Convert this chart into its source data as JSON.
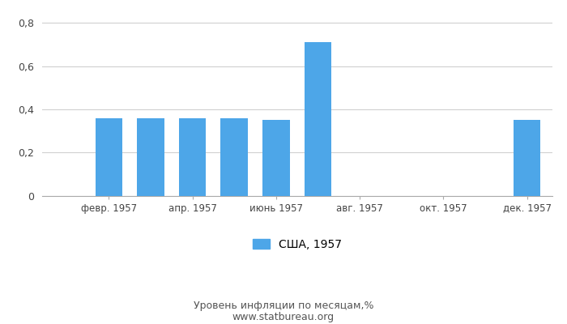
{
  "values": [
    0,
    0.36,
    0.36,
    0.36,
    0.36,
    0.35,
    0.71,
    0,
    0,
    0,
    0,
    0.35
  ],
  "bar_color": "#4da6e8",
  "xlabel_bottom": "Уровень инфляции по месяцам,%",
  "source": "www.statbureau.org",
  "legend_label": "США, 1957",
  "ylim": [
    0,
    0.85
  ],
  "yticks": [
    0,
    0.2,
    0.4,
    0.6,
    0.8
  ],
  "ytick_labels": [
    "0",
    "0,2",
    "0,4",
    "0,6",
    "0,8"
  ],
  "xtick_positions": [
    1,
    3,
    5,
    7,
    9,
    11
  ],
  "xtick_labels": [
    "февр. 1957",
    "апр. 1957",
    "июнь 1957",
    "авг. 1957",
    "окт. 1957",
    "дек. 1957"
  ],
  "background_color": "#ffffff",
  "grid_color": "#d0d0d0",
  "bar_width": 0.65,
  "figsize": [
    7.0,
    4.0
  ],
  "dpi": 100
}
